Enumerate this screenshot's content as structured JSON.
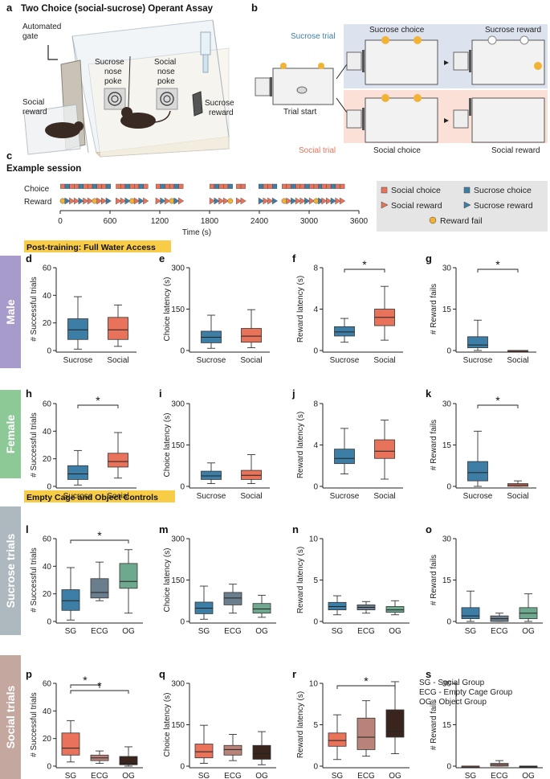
{
  "panel_a": {
    "letter": "a",
    "title": "Two Choice (social-sucrose) Operant Assay",
    "labels": {
      "gate": "Automated\ngate",
      "social_reward": "Social\nreward",
      "sucrose_poke": "Sucrose\nnose\npoke",
      "social_poke": "Social\nnose\npoke",
      "sucrose_reward": "Sucrose\nreward"
    }
  },
  "panel_b": {
    "letter": "b",
    "trial_start": "Trial start",
    "sucrose_trial": "Sucrose trial",
    "social_trial": "Social trial",
    "sucrose_choice": "Sucrose choice",
    "sucrose_reward": "Sucrose reward",
    "social_choice": "Social choice",
    "social_reward": "Social reward"
  },
  "panel_c": {
    "letter": "c",
    "title": "Example session",
    "row_labels": [
      "Choice",
      "Reward"
    ],
    "xlabel": "Time (s)",
    "xticks": [
      0,
      600,
      1200,
      1800,
      2400,
      3000,
      3600
    ],
    "legend": [
      "Social choice",
      "Sucrose choice",
      "Social reward",
      "Sucrose reward",
      "Reward fail"
    ],
    "colors": {
      "social": "#e8735a",
      "sucrose": "#3d7ea6",
      "fail": "#f2b233"
    }
  },
  "banners": [
    "Post-training: Full Water Access",
    "Empty Cage and Object Controls"
  ],
  "row_labels": [
    {
      "text": "Male",
      "color": "#a79bcc"
    },
    {
      "text": "Female",
      "color": "#8cc996"
    },
    {
      "text": "Sucrose trials",
      "color": "#aeb8bf"
    },
    {
      "text": "Social trials",
      "color": "#c4a8a0"
    }
  ],
  "legend_s": [
    "SG - Social Group",
    "ECG - Empty Cage Group",
    "OG - Object Group"
  ],
  "chart_data": [
    {
      "id": "d",
      "type": "box",
      "ylabel": "# Successful trials",
      "ylim": [
        0,
        60
      ],
      "yticks": [
        0,
        20,
        40,
        60
      ],
      "categories": [
        "Sucrose",
        "Social"
      ],
      "colors": [
        "#3d7ea6",
        "#e8735a"
      ],
      "boxes": [
        {
          "min": 1,
          "q1": 8,
          "med": 15,
          "q3": 23,
          "max": 39
        },
        {
          "min": 3,
          "q1": 8,
          "med": 15,
          "q3": 24,
          "max": 33
        }
      ],
      "sig": []
    },
    {
      "id": "e",
      "type": "box",
      "ylabel": "Choice latency (s)",
      "ylim": [
        0,
        300
      ],
      "yticks": [
        0,
        150,
        300
      ],
      "categories": [
        "Sucrose",
        "Social"
      ],
      "colors": [
        "#3d7ea6",
        "#e8735a"
      ],
      "boxes": [
        {
          "min": 8,
          "q1": 28,
          "med": 48,
          "q3": 70,
          "max": 128
        },
        {
          "min": 10,
          "q1": 30,
          "med": 52,
          "q3": 80,
          "max": 148
        }
      ],
      "sig": []
    },
    {
      "id": "f",
      "type": "box",
      "ylabel": "Reward latency (s)",
      "ylim": [
        0,
        8
      ],
      "yticks": [
        0,
        4,
        8
      ],
      "categories": [
        "Sucrose",
        "Social"
      ],
      "colors": [
        "#3d7ea6",
        "#e8735a"
      ],
      "boxes": [
        {
          "min": 0.8,
          "q1": 1.4,
          "med": 1.8,
          "q3": 2.3,
          "max": 3.1
        },
        {
          "min": 1.0,
          "q1": 2.4,
          "med": 3.2,
          "q3": 4.0,
          "max": 6.2
        }
      ],
      "sig": [
        [
          0,
          1
        ]
      ]
    },
    {
      "id": "g",
      "type": "box",
      "ylabel": "# Reward fails",
      "ylim": [
        0,
        30
      ],
      "yticks": [
        0,
        15,
        30
      ],
      "categories": [
        "Sucrose",
        "Social"
      ],
      "colors": [
        "#3d7ea6",
        "#e8735a"
      ],
      "boxes": [
        {
          "min": 0,
          "q1": 1,
          "med": 2,
          "q3": 5,
          "max": 11
        },
        {
          "min": 0,
          "q1": 0,
          "med": 0,
          "q3": 0,
          "max": 0
        }
      ],
      "sig": [
        [
          0,
          1
        ]
      ]
    },
    {
      "id": "h",
      "type": "box",
      "ylabel": "# Successful trials",
      "ylim": [
        0,
        60
      ],
      "yticks": [
        0,
        20,
        40,
        60
      ],
      "categories": [
        "Sucrose",
        "Social"
      ],
      "colors": [
        "#3d7ea6",
        "#e8735a"
      ],
      "boxes": [
        {
          "min": 1,
          "q1": 5,
          "med": 9,
          "q3": 15,
          "max": 26
        },
        {
          "min": 6,
          "q1": 14,
          "med": 18,
          "q3": 24,
          "max": 39
        }
      ],
      "sig": [
        [
          0,
          1
        ]
      ]
    },
    {
      "id": "i",
      "type": "box",
      "ylabel": "Choice latency (s)",
      "ylim": [
        0,
        300
      ],
      "yticks": [
        0,
        150,
        300
      ],
      "categories": [
        "Sucrose",
        "Social"
      ],
      "colors": [
        "#3d7ea6",
        "#e8735a"
      ],
      "boxes": [
        {
          "min": 10,
          "q1": 25,
          "med": 38,
          "q3": 55,
          "max": 85
        },
        {
          "min": 10,
          "q1": 25,
          "med": 40,
          "q3": 58,
          "max": 115
        }
      ],
      "sig": []
    },
    {
      "id": "j",
      "type": "box",
      "ylabel": "Reward latency (s)",
      "ylim": [
        0,
        8
      ],
      "yticks": [
        0,
        4,
        8
      ],
      "categories": [
        "Sucrose",
        "Social"
      ],
      "colors": [
        "#3d7ea6",
        "#e8735a"
      ],
      "boxes": [
        {
          "min": 1.2,
          "q1": 2.2,
          "med": 2.7,
          "q3": 3.6,
          "max": 5.6
        },
        {
          "min": 0.7,
          "q1": 2.7,
          "med": 3.4,
          "q3": 4.5,
          "max": 6.4
        }
      ],
      "sig": []
    },
    {
      "id": "k",
      "type": "box",
      "ylabel": "# Reward fails",
      "ylim": [
        0,
        30
      ],
      "yticks": [
        0,
        15,
        30
      ],
      "categories": [
        "Sucrose",
        "Social"
      ],
      "colors": [
        "#3d7ea6",
        "#e8735a"
      ],
      "boxes": [
        {
          "min": 0,
          "q1": 2,
          "med": 5,
          "q3": 9,
          "max": 20
        },
        {
          "min": 0,
          "q1": 0,
          "med": 0.5,
          "q3": 1,
          "max": 2
        }
      ],
      "sig": [
        [
          0,
          1
        ]
      ]
    },
    {
      "id": "l",
      "type": "box",
      "ylabel": "# Successful trials",
      "ylim": [
        0,
        60
      ],
      "yticks": [
        0,
        20,
        40,
        60
      ],
      "categories": [
        "SG",
        "ECG",
        "OG"
      ],
      "colors": [
        "#3d7ea6",
        "#6b7e8d",
        "#6ea88f"
      ],
      "boxes": [
        {
          "min": 1,
          "q1": 8,
          "med": 15,
          "q3": 23,
          "max": 39
        },
        {
          "min": 15,
          "q1": 17,
          "med": 21,
          "q3": 31,
          "max": 43
        },
        {
          "min": 6,
          "q1": 24,
          "med": 29,
          "q3": 42,
          "max": 52
        }
      ],
      "sig": [
        [
          0,
          2
        ]
      ]
    },
    {
      "id": "m",
      "type": "box",
      "ylabel": "Choice latency (s)",
      "ylim": [
        0,
        300
      ],
      "yticks": [
        0,
        150,
        300
      ],
      "categories": [
        "SG",
        "ECG",
        "OG"
      ],
      "colors": [
        "#3d7ea6",
        "#6b7e8d",
        "#6ea88f"
      ],
      "boxes": [
        {
          "min": 8,
          "q1": 28,
          "med": 48,
          "q3": 70,
          "max": 128
        },
        {
          "min": 30,
          "q1": 60,
          "med": 85,
          "q3": 105,
          "max": 135
        },
        {
          "min": 15,
          "q1": 30,
          "med": 45,
          "q3": 65,
          "max": 95
        }
      ],
      "sig": []
    },
    {
      "id": "n",
      "type": "box",
      "ylabel": "Reward latency (s)",
      "ylim": [
        0,
        10
      ],
      "yticks": [
        0,
        5,
        10
      ],
      "categories": [
        "SG",
        "ECG",
        "OG"
      ],
      "colors": [
        "#3d7ea6",
        "#6b7e8d",
        "#6ea88f"
      ],
      "boxes": [
        {
          "min": 0.8,
          "q1": 1.4,
          "med": 1.8,
          "q3": 2.3,
          "max": 3.1
        },
        {
          "min": 1.0,
          "q1": 1.4,
          "med": 1.7,
          "q3": 2.0,
          "max": 2.4
        },
        {
          "min": 0.8,
          "q1": 1.1,
          "med": 1.4,
          "q3": 1.8,
          "max": 2.5
        }
      ],
      "sig": []
    },
    {
      "id": "o",
      "type": "box",
      "ylabel": "# Reward fails",
      "ylim": [
        0,
        30
      ],
      "yticks": [
        0,
        15,
        30
      ],
      "categories": [
        "SG",
        "ECG",
        "OG"
      ],
      "colors": [
        "#3d7ea6",
        "#6b7e8d",
        "#6ea88f"
      ],
      "boxes": [
        {
          "min": 0,
          "q1": 1,
          "med": 2,
          "q3": 5,
          "max": 11
        },
        {
          "min": 0,
          "q1": 0,
          "med": 1,
          "q3": 2,
          "max": 3
        },
        {
          "min": 0,
          "q1": 1,
          "med": 3,
          "q3": 5,
          "max": 10
        }
      ],
      "sig": []
    },
    {
      "id": "p",
      "type": "box",
      "ylabel": "# Successful trials",
      "ylim": [
        0,
        60
      ],
      "yticks": [
        0,
        20,
        40,
        60
      ],
      "categories": [
        "SG",
        "ECG",
        "OG"
      ],
      "colors": [
        "#e8735a",
        "#b9837a",
        "#3a241e"
      ],
      "boxes": [
        {
          "min": 3,
          "q1": 8,
          "med": 13,
          "q3": 24,
          "max": 33
        },
        {
          "min": 2,
          "q1": 4,
          "med": 6,
          "q3": 8,
          "max": 11
        },
        {
          "min": 0,
          "q1": 1,
          "med": 2,
          "q3": 7,
          "max": 14
        }
      ],
      "sig": [
        [
          0,
          1
        ],
        [
          0,
          2
        ]
      ]
    },
    {
      "id": "q",
      "type": "box",
      "ylabel": "Choice latency (s)",
      "ylim": [
        0,
        300
      ],
      "yticks": [
        0,
        150,
        300
      ],
      "categories": [
        "SG",
        "ECG",
        "OG"
      ],
      "colors": [
        "#e8735a",
        "#b9837a",
        "#3a241e"
      ],
      "boxes": [
        {
          "min": 10,
          "q1": 30,
          "med": 52,
          "q3": 80,
          "max": 148
        },
        {
          "min": 20,
          "q1": 40,
          "med": 60,
          "q3": 75,
          "max": 115
        },
        {
          "min": 5,
          "q1": 25,
          "med": 45,
          "q3": 75,
          "max": 125
        }
      ],
      "sig": []
    },
    {
      "id": "r",
      "type": "box",
      "ylabel": "Reward latency (s)",
      "ylim": [
        0,
        10
      ],
      "yticks": [
        0,
        5,
        10
      ],
      "categories": [
        "SG",
        "ECG",
        "OG"
      ],
      "colors": [
        "#e8735a",
        "#b9837a",
        "#3a241e"
      ],
      "boxes": [
        {
          "min": 0.8,
          "q1": 2.4,
          "med": 3.1,
          "q3": 4.0,
          "max": 6.2
        },
        {
          "min": 1.2,
          "q1": 2.0,
          "med": 3.5,
          "q3": 5.8,
          "max": 7.9
        },
        {
          "min": 1.5,
          "q1": 3.5,
          "med": 4.2,
          "q3": 6.8,
          "max": 10.2
        }
      ],
      "sig": [
        [
          0,
          2
        ]
      ]
    },
    {
      "id": "s",
      "type": "box",
      "ylabel": "# Reward fails",
      "ylim": [
        0,
        30
      ],
      "yticks": [
        0,
        15,
        30
      ],
      "categories": [
        "SG",
        "ECG",
        "OG"
      ],
      "colors": [
        "#e8735a",
        "#b9837a",
        "#3a241e"
      ],
      "boxes": [
        {
          "min": 0,
          "q1": 0,
          "med": 0,
          "q3": 0,
          "max": 0
        },
        {
          "min": 0,
          "q1": 0,
          "med": 0.5,
          "q3": 1,
          "max": 2
        },
        {
          "min": 0,
          "q1": 0,
          "med": 0,
          "q3": 0,
          "max": 0
        }
      ],
      "sig": []
    }
  ],
  "sig_marker": "*"
}
